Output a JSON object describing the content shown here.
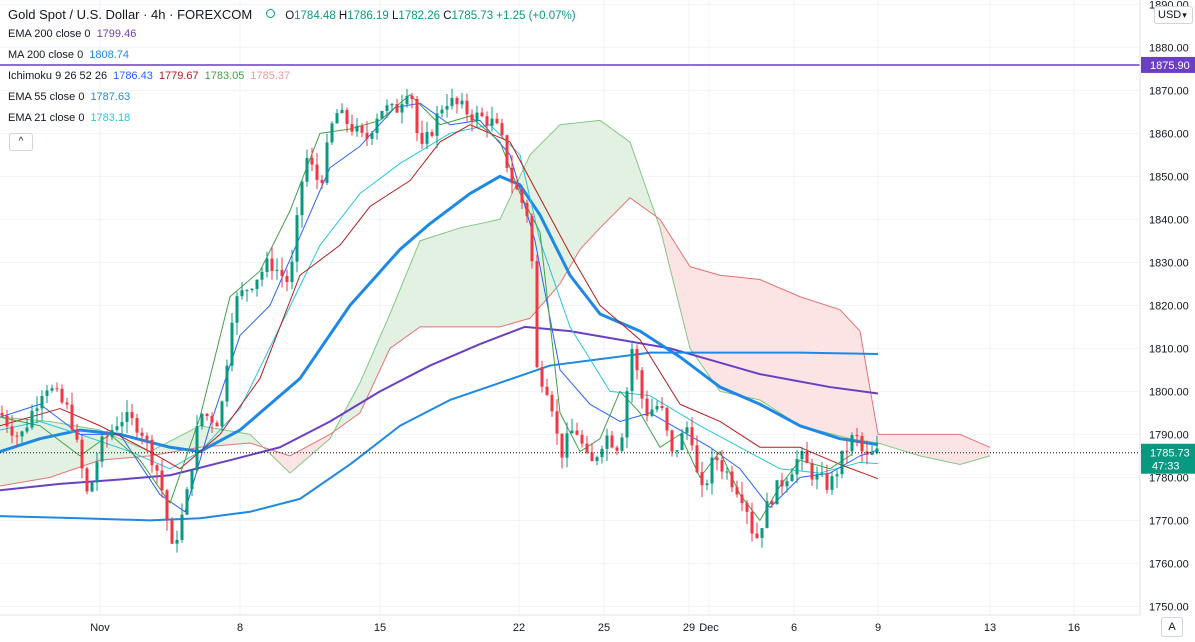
{
  "header": {
    "symbol": "Gold Spot / U.S. Dollar · 4h · FOREXCOM",
    "open_label": "O",
    "open": "1784.48",
    "high_label": "H",
    "high": "1786.19",
    "low_label": "L",
    "low": "1782.26",
    "close_label": "C",
    "close": "1785.73",
    "change": "+1.25 (+0.07%)"
  },
  "indicators": [
    {
      "name": "EMA 200 close 0",
      "values": [
        "1799.46"
      ],
      "colors": [
        "#6a3fc4"
      ]
    },
    {
      "name": "MA 200 close 0",
      "values": [
        "1808.74"
      ],
      "colors": [
        "#1e88e5"
      ]
    },
    {
      "name": "Ichimoku 9 26 52 26",
      "values": [
        "1786.43",
        "1779.67",
        "1783.05",
        "1785.37"
      ],
      "colors": [
        "#2962ff",
        "#b71c1c",
        "#43a047",
        "#ef9a9a"
      ]
    },
    {
      "name": "EMA 55 close 0",
      "values": [
        "1787.63"
      ],
      "colors": [
        "#1e88e5"
      ]
    },
    {
      "name": "EMA 21 close 0",
      "values": [
        "1783.18"
      ],
      "colors": [
        "#26c6da"
      ]
    }
  ],
  "controls": {
    "collapse_glyph": "^",
    "currency": "USD",
    "currency_arrow": "▾",
    "auto_scale": "A"
  },
  "colors": {
    "up": "#089981",
    "down": "#f23645",
    "hline": "#6a3fc4",
    "price_tag": "#089981",
    "cloud_bull": "#e3f1e3",
    "cloud_bear": "#fce4e4"
  },
  "chart_data": {
    "type": "candlestick",
    "ylim": [
      1748,
      1891
    ],
    "yticks": [
      1750,
      1760,
      1770,
      1780,
      1790,
      1800,
      1810,
      1820,
      1830,
      1840,
      1850,
      1860,
      1870,
      1880,
      1890
    ],
    "xlim": [
      0,
      1140
    ],
    "xticks": [
      {
        "label": "Nov",
        "x": 100
      },
      {
        "label": "8",
        "x": 240
      },
      {
        "label": "15",
        "x": 380
      },
      {
        "label": "22",
        "x": 519
      },
      {
        "label": "25",
        "x": 604
      },
      {
        "label": "29",
        "x": 689
      },
      {
        "label": "Dec",
        "x": 709
      },
      {
        "label": "6",
        "x": 794
      },
      {
        "label": "9",
        "x": 878
      },
      {
        "label": "13",
        "x": 990
      },
      {
        "label": "16",
        "x": 1074
      }
    ],
    "hline": {
      "value": 1875.9,
      "label": "1875.90"
    },
    "last_price": {
      "value": 1785.73,
      "label": "1785.73",
      "countdown": "47:33"
    },
    "candle_anchors": [
      [
        0,
        1795
      ],
      [
        20,
        1789
      ],
      [
        45,
        1802
      ],
      [
        70,
        1795
      ],
      [
        88,
        1775
      ],
      [
        100,
        1787
      ],
      [
        120,
        1794
      ],
      [
        140,
        1792
      ],
      [
        160,
        1780
      ],
      [
        172,
        1763
      ],
      [
        185,
        1773
      ],
      [
        200,
        1795
      ],
      [
        220,
        1793
      ],
      [
        233,
        1820
      ],
      [
        250,
        1825
      ],
      [
        270,
        1830
      ],
      [
        290,
        1825
      ],
      [
        305,
        1855
      ],
      [
        320,
        1848
      ],
      [
        335,
        1865
      ],
      [
        350,
        1862
      ],
      [
        365,
        1858
      ],
      [
        380,
        1866
      ],
      [
        395,
        1865
      ],
      [
        410,
        1872
      ],
      [
        420,
        1855
      ],
      [
        430,
        1860
      ],
      [
        445,
        1868
      ],
      [
        460,
        1866
      ],
      [
        475,
        1864
      ],
      [
        490,
        1863
      ],
      [
        500,
        1860
      ],
      [
        510,
        1850
      ],
      [
        520,
        1845
      ],
      [
        530,
        1840
      ],
      [
        537,
        1805
      ],
      [
        550,
        1800
      ],
      [
        560,
        1785
      ],
      [
        575,
        1792
      ],
      [
        590,
        1782
      ],
      [
        605,
        1790
      ],
      [
        620,
        1787
      ],
      [
        632,
        1810
      ],
      [
        645,
        1795
      ],
      [
        660,
        1797
      ],
      [
        672,
        1785
      ],
      [
        690,
        1793
      ],
      [
        700,
        1775
      ],
      [
        715,
        1785
      ],
      [
        730,
        1780
      ],
      [
        745,
        1775
      ],
      [
        755,
        1765
      ],
      [
        770,
        1775
      ],
      [
        785,
        1780
      ],
      [
        800,
        1785
      ],
      [
        815,
        1780
      ],
      [
        830,
        1778
      ],
      [
        845,
        1786
      ],
      [
        855,
        1790
      ],
      [
        865,
        1784
      ],
      [
        878,
        1785.73
      ]
    ],
    "series": [
      {
        "name": "EMA 200",
        "color": "#6a3fc4",
        "width": 2,
        "points": [
          [
            0,
            1777
          ],
          [
            60,
            1778.5
          ],
          [
            120,
            1779.5
          ],
          [
            170,
            1780.5
          ],
          [
            230,
            1784
          ],
          [
            280,
            1787
          ],
          [
            330,
            1793
          ],
          [
            380,
            1800
          ],
          [
            430,
            1806
          ],
          [
            480,
            1811
          ],
          [
            525,
            1815
          ],
          [
            570,
            1814
          ],
          [
            620,
            1812
          ],
          [
            670,
            1810
          ],
          [
            700,
            1808
          ],
          [
            760,
            1804
          ],
          [
            830,
            1801
          ],
          [
            878,
            1799.5
          ]
        ]
      },
      {
        "name": "MA 200",
        "color": "#1e88e5",
        "width": 2,
        "points": [
          [
            0,
            1771
          ],
          [
            80,
            1770.5
          ],
          [
            150,
            1770
          ],
          [
            200,
            1770.5
          ],
          [
            250,
            1772
          ],
          [
            300,
            1775
          ],
          [
            350,
            1783
          ],
          [
            400,
            1792
          ],
          [
            450,
            1798
          ],
          [
            500,
            1802
          ],
          [
            550,
            1806
          ],
          [
            600,
            1807.5
          ],
          [
            650,
            1809
          ],
          [
            700,
            1809
          ],
          [
            750,
            1809
          ],
          [
            800,
            1809
          ],
          [
            878,
            1808.7
          ]
        ]
      },
      {
        "name": "EMA 55",
        "color": "#1e88e5",
        "width": 3,
        "points": [
          [
            0,
            1786
          ],
          [
            40,
            1789
          ],
          [
            80,
            1791
          ],
          [
            120,
            1790
          ],
          [
            170,
            1787
          ],
          [
            200,
            1786
          ],
          [
            240,
            1791
          ],
          [
            300,
            1803
          ],
          [
            350,
            1820
          ],
          [
            400,
            1833
          ],
          [
            430,
            1839
          ],
          [
            470,
            1846
          ],
          [
            500,
            1850
          ],
          [
            520,
            1848
          ],
          [
            540,
            1841
          ],
          [
            570,
            1827
          ],
          [
            600,
            1818
          ],
          [
            640,
            1814
          ],
          [
            680,
            1808
          ],
          [
            720,
            1801
          ],
          [
            760,
            1797
          ],
          [
            800,
            1792
          ],
          [
            840,
            1789
          ],
          [
            878,
            1787.6
          ]
        ]
      },
      {
        "name": "EMA 21",
        "color": "#26c6da",
        "width": 1,
        "points": [
          [
            0,
            1791
          ],
          [
            40,
            1793
          ],
          [
            80,
            1790
          ],
          [
            130,
            1786
          ],
          [
            170,
            1782
          ],
          [
            200,
            1786
          ],
          [
            240,
            1796
          ],
          [
            280,
            1815
          ],
          [
            320,
            1834
          ],
          [
            360,
            1846
          ],
          [
            400,
            1853
          ],
          [
            450,
            1860
          ],
          [
            490,
            1862
          ],
          [
            520,
            1855
          ],
          [
            540,
            1835
          ],
          [
            570,
            1815
          ],
          [
            610,
            1800
          ],
          [
            650,
            1799
          ],
          [
            700,
            1792
          ],
          [
            740,
            1787
          ],
          [
            780,
            1782
          ],
          [
            820,
            1781
          ],
          [
            860,
            1783.5
          ],
          [
            878,
            1783.2
          ]
        ]
      },
      {
        "name": "Conversion",
        "color": "#2962ff",
        "width": 1,
        "points": [
          [
            0,
            1794
          ],
          [
            40,
            1797
          ],
          [
            80,
            1790
          ],
          [
            120,
            1790
          ],
          [
            160,
            1776
          ],
          [
            185,
            1772
          ],
          [
            210,
            1792
          ],
          [
            240,
            1813
          ],
          [
            270,
            1820
          ],
          [
            300,
            1836
          ],
          [
            330,
            1852
          ],
          [
            360,
            1857
          ],
          [
            395,
            1866
          ],
          [
            420,
            1867
          ],
          [
            450,
            1862
          ],
          [
            480,
            1863
          ],
          [
            510,
            1855
          ],
          [
            535,
            1835
          ],
          [
            560,
            1805
          ],
          [
            590,
            1797
          ],
          [
            620,
            1793
          ],
          [
            650,
            1795
          ],
          [
            680,
            1791
          ],
          [
            710,
            1787
          ],
          [
            740,
            1782
          ],
          [
            770,
            1773
          ],
          [
            800,
            1780
          ],
          [
            830,
            1781
          ],
          [
            860,
            1785
          ],
          [
            878,
            1786.4
          ]
        ]
      },
      {
        "name": "Base",
        "color": "#b71c1c",
        "width": 1,
        "points": [
          [
            0,
            1792
          ],
          [
            60,
            1796
          ],
          [
            100,
            1792
          ],
          [
            150,
            1786
          ],
          [
            180,
            1782
          ],
          [
            220,
            1790
          ],
          [
            260,
            1803
          ],
          [
            300,
            1827
          ],
          [
            340,
            1834
          ],
          [
            370,
            1843
          ],
          [
            410,
            1849
          ],
          [
            440,
            1858
          ],
          [
            470,
            1862
          ],
          [
            510,
            1858
          ],
          [
            540,
            1845
          ],
          [
            570,
            1832
          ],
          [
            600,
            1820
          ],
          [
            640,
            1812
          ],
          [
            680,
            1797
          ],
          [
            720,
            1793
          ],
          [
            760,
            1787
          ],
          [
            800,
            1787
          ],
          [
            840,
            1783
          ],
          [
            878,
            1779.7
          ]
        ]
      },
      {
        "name": "Lagging Span",
        "color": "#43a047",
        "width": 1,
        "points": [
          [
            0,
            1794
          ],
          [
            40,
            1792
          ],
          [
            80,
            1785
          ],
          [
            110,
            1790
          ],
          [
            140,
            1784
          ],
          [
            170,
            1774
          ],
          [
            200,
            1794
          ],
          [
            230,
            1822
          ],
          [
            260,
            1828
          ],
          [
            290,
            1842
          ],
          [
            320,
            1860
          ],
          [
            350,
            1861
          ],
          [
            380,
            1863
          ],
          [
            410,
            1869
          ],
          [
            440,
            1862
          ],
          [
            470,
            1864
          ],
          [
            500,
            1858
          ],
          [
            520,
            1846
          ],
          [
            540,
            1837
          ],
          [
            560,
            1795
          ],
          [
            580,
            1786
          ],
          [
            600,
            1789
          ],
          [
            620,
            1800
          ],
          [
            640,
            1795
          ],
          [
            660,
            1787
          ],
          [
            680,
            1790
          ],
          [
            700,
            1780
          ],
          [
            720,
            1786
          ],
          [
            740,
            1776
          ],
          [
            760,
            1770
          ],
          [
            780,
            1778
          ],
          [
            800,
            1784
          ],
          [
            830,
            1782
          ],
          [
            852,
            1785.4
          ]
        ]
      }
    ],
    "cloud": {
      "span_a": [
        [
          0,
          1794
        ],
        [
          50,
          1793
        ],
        [
          100,
          1791
        ],
        [
          150,
          1786
        ],
        [
          200,
          1792
        ],
        [
          250,
          1790
        ],
        [
          290,
          1781
        ],
        [
          330,
          1789
        ],
        [
          360,
          1802
        ],
        [
          390,
          1818
        ],
        [
          420,
          1835
        ],
        [
          460,
          1838
        ],
        [
          500,
          1840
        ],
        [
          530,
          1855
        ],
        [
          560,
          1862
        ],
        [
          600,
          1863
        ],
        [
          630,
          1858
        ],
        [
          660,
          1838
        ],
        [
          690,
          1810
        ],
        [
          720,
          1800
        ],
        [
          760,
          1798
        ],
        [
          800,
          1792
        ],
        [
          850,
          1789
        ],
        [
          878,
          1788
        ],
        [
          920,
          1785
        ],
        [
          960,
          1783
        ],
        [
          990,
          1785
        ]
      ],
      "span_b": [
        [
          0,
          1778
        ],
        [
          50,
          1780
        ],
        [
          100,
          1784
        ],
        [
          150,
          1785
        ],
        [
          200,
          1787
        ],
        [
          250,
          1788
        ],
        [
          290,
          1785
        ],
        [
          330,
          1790
        ],
        [
          360,
          1795
        ],
        [
          390,
          1810
        ],
        [
          420,
          1815
        ],
        [
          460,
          1815
        ],
        [
          500,
          1815
        ],
        [
          530,
          1817
        ],
        [
          560,
          1825
        ],
        [
          580,
          1833
        ],
        [
          600,
          1838
        ],
        [
          630,
          1845
        ],
        [
          660,
          1840
        ],
        [
          690,
          1829
        ],
        [
          720,
          1827
        ],
        [
          760,
          1826
        ],
        [
          800,
          1822
        ],
        [
          840,
          1819
        ],
        [
          860,
          1814
        ],
        [
          878,
          1790
        ],
        [
          920,
          1790
        ],
        [
          960,
          1790
        ],
        [
          990,
          1787
        ]
      ]
    }
  }
}
